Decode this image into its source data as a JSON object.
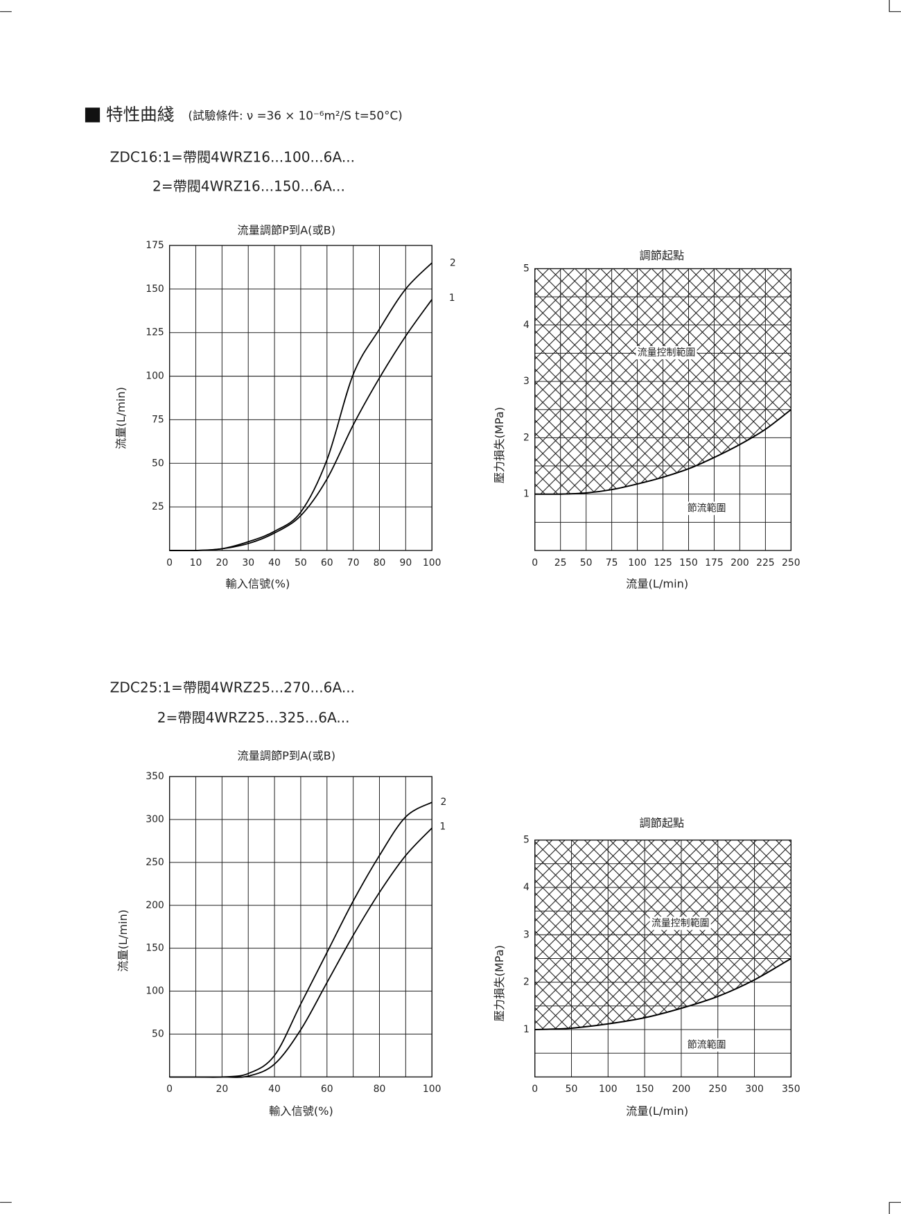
{
  "header": {
    "title": "特性曲綫",
    "conditions": "(試驗條件: ν =36 × 10⁻⁶m²/S   t=50°C)"
  },
  "sections": [
    {
      "line1": "ZDC16:1=帶閥4WRZ16...100...6A...",
      "line2": "2=帶閥4WRZ16...150...6A..."
    },
    {
      "line1": "ZDC25:1=帶閥4WRZ25...270...6A...",
      "line2": "2=帶閥4WRZ25...325...6A..."
    }
  ],
  "chart_data": [
    {
      "type": "line",
      "title": "流量調節P到A(或B)",
      "x_label": "輸入信號(%)",
      "y_label": "流量(L/min)",
      "x": [
        0,
        10,
        20,
        30,
        40,
        50,
        60,
        70,
        80,
        90,
        100
      ],
      "series": [
        {
          "name": "1",
          "color": "#000000",
          "values": [
            0,
            0,
            1,
            4,
            10,
            20,
            41,
            72,
            99,
            123,
            144
          ]
        },
        {
          "name": "2",
          "color": "#000000",
          "values": [
            0,
            0,
            1,
            5,
            11,
            22,
            52,
            101,
            127,
            150,
            165
          ]
        }
      ],
      "xlim": [
        0,
        100
      ],
      "xticks": [
        0,
        10,
        20,
        30,
        40,
        50,
        60,
        70,
        80,
        90,
        100
      ],
      "ylim": [
        0,
        175
      ],
      "yticks": [
        25,
        50,
        75,
        100,
        125,
        150,
        175
      ],
      "grid": true,
      "x_grid_step": 10,
      "y_grid_step": 25
    },
    {
      "type": "area",
      "title": "調節起點",
      "x_label": "流量(L/min)",
      "y_label": "壓力損失(MPa)",
      "x": [
        0,
        25,
        50,
        75,
        100,
        125,
        150,
        175,
        200,
        225,
        250
      ],
      "values": [
        1.0,
        1.0,
        1.02,
        1.08,
        1.18,
        1.3,
        1.45,
        1.65,
        1.88,
        2.15,
        2.5
      ],
      "color": "#000000",
      "hatch": "above",
      "annotations": [
        "流量控制範圍",
        "節流範圍"
      ],
      "xlim": [
        0,
        250
      ],
      "xticks": [
        0,
        25,
        50,
        75,
        100,
        125,
        150,
        175,
        200,
        225,
        250
      ],
      "ylim": [
        0,
        5
      ],
      "yticks": [
        1,
        2,
        3,
        4,
        5
      ],
      "grid": true,
      "x_grid_step": 25,
      "y_grid_step": 0.5
    },
    {
      "type": "line",
      "title": "流量調節P到A(或B)",
      "x_label": "輸入信號(%)",
      "y_label": "流量(L/min)",
      "x": [
        0,
        10,
        20,
        30,
        40,
        50,
        60,
        70,
        80,
        90,
        100
      ],
      "series": [
        {
          "name": "1",
          "color": "#000000",
          "values": [
            0,
            0,
            0,
            1,
            15,
            55,
            110,
            165,
            215,
            258,
            290
          ]
        },
        {
          "name": "2",
          "color": "#000000",
          "values": [
            0,
            0,
            0,
            4,
            25,
            85,
            145,
            205,
            258,
            303,
            320
          ]
        }
      ],
      "xlim": [
        0,
        100
      ],
      "xticks": [
        0,
        20,
        40,
        60,
        80,
        100
      ],
      "ylim": [
        0,
        350
      ],
      "yticks": [
        50,
        100,
        150,
        200,
        250,
        300,
        350
      ],
      "grid": true,
      "x_grid_step": 10,
      "y_grid_step": 50
    },
    {
      "type": "area",
      "title": "調節起點",
      "x_label": "流量(L/min)",
      "y_label": "壓力損失(MPa)",
      "x": [
        0,
        50,
        100,
        150,
        200,
        250,
        300,
        350
      ],
      "values": [
        1.0,
        1.03,
        1.12,
        1.25,
        1.45,
        1.7,
        2.05,
        2.5
      ],
      "color": "#000000",
      "hatch": "above",
      "annotations": [
        "流量控制範圍",
        "節流範圍"
      ],
      "xlim": [
        0,
        350
      ],
      "xticks": [
        0,
        50,
        100,
        150,
        200,
        250,
        300,
        350
      ],
      "ylim": [
        0,
        5
      ],
      "yticks": [
        1,
        2,
        3,
        4,
        5
      ],
      "grid": true,
      "x_grid_step": 50,
      "y_grid_step": 0.5
    }
  ]
}
